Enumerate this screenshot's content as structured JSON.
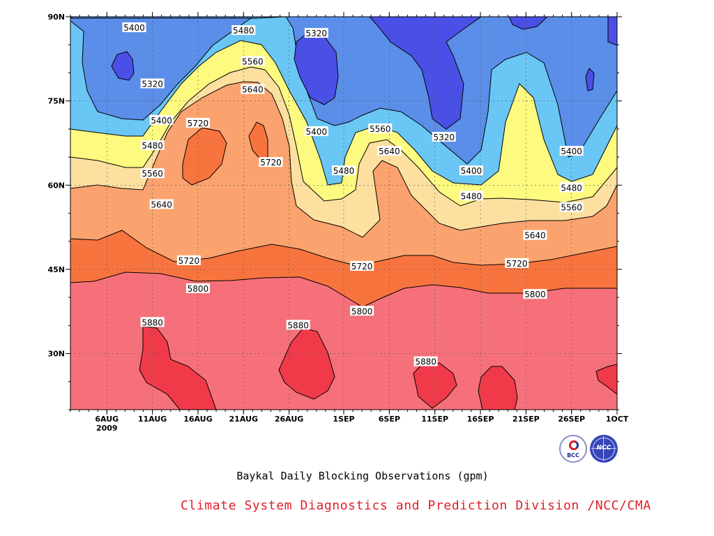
{
  "chart_data": {
    "type": "heatmap",
    "title": "Baykal Daily Blocking Observations (gpm)",
    "credit": "Climate System Diagnostics and Prediction Division /NCC/CMA",
    "x_start": "2009-08-02",
    "x_end": "2009-10-01",
    "xticks": [
      {
        "label": "6AUG",
        "sub": "2009",
        "date": "2009-08-06"
      },
      {
        "label": "11AUG",
        "sub": "",
        "date": "2009-08-11"
      },
      {
        "label": "16AUG",
        "sub": "",
        "date": "2009-08-16"
      },
      {
        "label": "21AUG",
        "sub": "",
        "date": "2009-08-21"
      },
      {
        "label": "26AUG",
        "sub": "",
        "date": "2009-08-26"
      },
      {
        "label": "1SEP",
        "sub": "",
        "date": "2009-09-01"
      },
      {
        "label": "6SEP",
        "sub": "",
        "date": "2009-09-06"
      },
      {
        "label": "11SEP",
        "sub": "",
        "date": "2009-09-11"
      },
      {
        "label": "16SEP",
        "sub": "",
        "date": "2009-09-16"
      },
      {
        "label": "21SEP",
        "sub": "",
        "date": "2009-09-21"
      },
      {
        "label": "26SEP",
        "sub": "",
        "date": "2009-09-26"
      },
      {
        "label": "1OCT",
        "sub": "",
        "date": "2009-10-01"
      }
    ],
    "yticks": [
      {
        "label": "30N",
        "lat": 30
      },
      {
        "label": "45N",
        "lat": 45
      },
      {
        "label": "60N",
        "lat": 60
      },
      {
        "label": "75N",
        "lat": 75
      },
      {
        "label": "90N",
        "lat": 90
      }
    ],
    "ylim": [
      20,
      90
    ],
    "levels": [
      5320,
      5400,
      5480,
      5560,
      5640,
      5720,
      5800,
      5880
    ],
    "colors": {
      "below_5320": "#4a50e6",
      "5320_5400": "#5a8ee8",
      "5400_5480": "#6ac6f4",
      "5480_5560": "#fdfa80",
      "5560_5640": "#fde0a0",
      "5640_5720": "#fba36e",
      "5720_5800": "#f8743f",
      "5800_5880": "#f5707a",
      "above_5880": "#f03a4a"
    },
    "contour_labels": [
      {
        "text": "5400",
        "date": "2009-08-09",
        "lat": 88
      },
      {
        "text": "5320",
        "date": "2009-08-11",
        "lat": 78
      },
      {
        "text": "5400",
        "date": "2009-08-12",
        "lat": 71.5
      },
      {
        "text": "5480",
        "date": "2009-08-11",
        "lat": 67
      },
      {
        "text": "5560",
        "date": "2009-08-11",
        "lat": 62
      },
      {
        "text": "5640",
        "date": "2009-08-12",
        "lat": 56.5
      },
      {
        "text": "5720",
        "date": "2009-08-16",
        "lat": 71
      },
      {
        "text": "5480",
        "date": "2009-08-21",
        "lat": 87.5
      },
      {
        "text": "5560",
        "date": "2009-08-22",
        "lat": 82
      },
      {
        "text": "5640",
        "date": "2009-08-22",
        "lat": 77
      },
      {
        "text": "5720",
        "date": "2009-08-24",
        "lat": 64
      },
      {
        "text": "5320",
        "date": "2009-08-29",
        "lat": 87
      },
      {
        "text": "5400",
        "date": "2009-08-29",
        "lat": 69.5
      },
      {
        "text": "5480",
        "date": "2009-09-01",
        "lat": 62.5
      },
      {
        "text": "5560",
        "date": "2009-09-05",
        "lat": 70
      },
      {
        "text": "5640",
        "date": "2009-09-06",
        "lat": 66
      },
      {
        "text": "5320",
        "date": "2009-09-12",
        "lat": 68.5
      },
      {
        "text": "5400",
        "date": "2009-09-15",
        "lat": 62.5
      },
      {
        "text": "5480",
        "date": "2009-09-15",
        "lat": 58
      },
      {
        "text": "5400",
        "date": "2009-09-26",
        "lat": 66
      },
      {
        "text": "5480",
        "date": "2009-09-26",
        "lat": 59.5
      },
      {
        "text": "5560",
        "date": "2009-09-26",
        "lat": 56
      },
      {
        "text": "5640",
        "date": "2009-09-22",
        "lat": 51
      },
      {
        "text": "5720",
        "date": "2009-08-15",
        "lat": 46.5
      },
      {
        "text": "5720",
        "date": "2009-09-03",
        "lat": 45.5
      },
      {
        "text": "5720",
        "date": "2009-09-20",
        "lat": 46
      },
      {
        "text": "5800",
        "date": "2009-08-16",
        "lat": 41.5
      },
      {
        "text": "5800",
        "date": "2009-09-03",
        "lat": 37.5
      },
      {
        "text": "5800",
        "date": "2009-09-22",
        "lat": 40.5
      },
      {
        "text": "5880",
        "date": "2009-08-11",
        "lat": 35.5
      },
      {
        "text": "5880",
        "date": "2009-08-27",
        "lat": 35
      },
      {
        "text": "5880",
        "date": "2009-09-10",
        "lat": 28.5
      }
    ],
    "grid": true
  },
  "logos": {
    "left": "BCC",
    "right": "NCC"
  }
}
